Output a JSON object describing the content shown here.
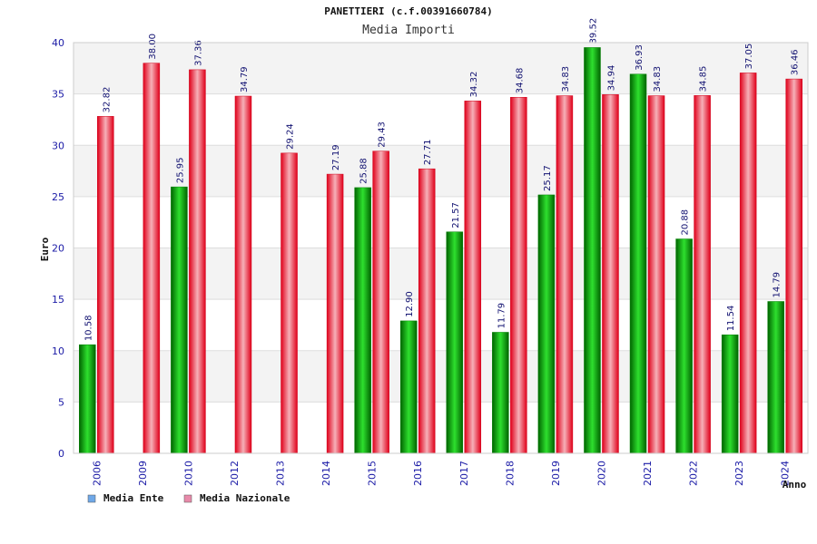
{
  "chart_data": {
    "type": "bar",
    "title": "PANETTIERI (c.f.00391660784)",
    "subtitle": "Media Importi",
    "xlabel": "Anno",
    "ylabel": "Euro",
    "ylim": [
      0,
      40
    ],
    "yticks": [
      0,
      5,
      10,
      15,
      20,
      25,
      30,
      35,
      40
    ],
    "categories": [
      "2006",
      "2009",
      "2010",
      "2012",
      "2013",
      "2014",
      "2015",
      "2016",
      "2017",
      "2018",
      "2019",
      "2020",
      "2021",
      "2022",
      "2023",
      "2024"
    ],
    "series": [
      {
        "name": "Media Ente",
        "values": [
          10.58,
          null,
          25.95,
          null,
          null,
          null,
          25.88,
          12.9,
          21.57,
          11.79,
          25.17,
          39.52,
          36.93,
          20.88,
          11.54,
          14.79
        ],
        "labels": [
          "10.58",
          null,
          "25.95",
          null,
          null,
          null,
          "25.88",
          "12.90",
          "21.57",
          "11.79",
          "25.17",
          "39.52",
          "36.93",
          "20.88",
          "11.54",
          "14.79"
        ]
      },
      {
        "name": "Media Nazionale",
        "values": [
          32.82,
          38.0,
          37.36,
          34.79,
          29.24,
          27.19,
          29.43,
          27.71,
          34.32,
          34.68,
          34.83,
          34.94,
          34.83,
          34.85,
          37.05,
          36.46
        ],
        "labels": [
          "32.82",
          "38.00",
          "37.36",
          "34.79",
          "29.24",
          "27.19",
          "29.43",
          "27.71",
          "34.32",
          "34.68",
          "34.83",
          "34.94",
          "34.83",
          "34.85",
          "37.05",
          "36.46"
        ]
      }
    ],
    "legend": {
      "position": "bottom-left",
      "items": [
        {
          "label": "Media Ente",
          "color": "#6fa8e8"
        },
        {
          "label": "Media Nazionale",
          "color": "#e88aaa"
        }
      ]
    },
    "colors": {
      "ente_bar": "#00c000",
      "nazionale_bar": "#ee1c25",
      "band": "#f3f3f3",
      "grid": "#dddddd",
      "axis_text": "#1a1aa6"
    },
    "grid": true
  }
}
